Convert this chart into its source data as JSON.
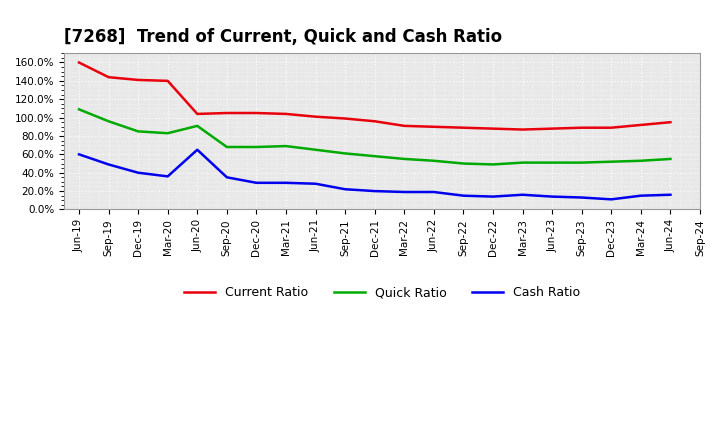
{
  "title": "[7268]  Trend of Current, Quick and Cash Ratio",
  "x_labels": [
    "Jun-19",
    "Sep-19",
    "Dec-19",
    "Mar-20",
    "Jun-20",
    "Sep-20",
    "Dec-20",
    "Mar-21",
    "Jun-21",
    "Sep-21",
    "Dec-21",
    "Mar-22",
    "Jun-22",
    "Sep-22",
    "Dec-22",
    "Mar-23",
    "Jun-23",
    "Sep-23",
    "Dec-23",
    "Mar-24",
    "Jun-24",
    "Sep-24"
  ],
  "current_ratio": [
    160.0,
    144.0,
    141.0,
    140.0,
    104.0,
    105.0,
    105.0,
    104.0,
    101.0,
    99.0,
    96.0,
    91.0,
    90.0,
    89.0,
    88.0,
    87.0,
    88.0,
    89.0,
    89.0,
    92.0,
    95.0,
    null
  ],
  "quick_ratio": [
    109.0,
    96.0,
    85.0,
    83.0,
    91.0,
    68.0,
    68.0,
    69.0,
    65.0,
    61.0,
    58.0,
    55.0,
    53.0,
    50.0,
    49.0,
    51.0,
    51.0,
    51.0,
    52.0,
    53.0,
    55.0,
    null
  ],
  "cash_ratio": [
    60.0,
    49.0,
    40.0,
    36.0,
    65.0,
    35.0,
    29.0,
    29.0,
    28.0,
    22.0,
    20.0,
    19.0,
    19.0,
    15.0,
    14.0,
    16.0,
    14.0,
    13.0,
    11.0,
    15.0,
    16.0,
    null
  ],
  "current_color": "#e8000d",
  "quick_color": "#00aa00",
  "cash_color": "#0000ee",
  "background_color": "#ffffff",
  "plot_bg_color": "#e8e8e8",
  "grid_color": "#ffffff",
  "ylim": [
    0,
    170
  ],
  "yticks": [
    0,
    20,
    40,
    60,
    80,
    100,
    120,
    140,
    160
  ],
  "line_width": 1.8,
  "title_fontsize": 12,
  "legend_fontsize": 9,
  "tick_fontsize": 7.5
}
